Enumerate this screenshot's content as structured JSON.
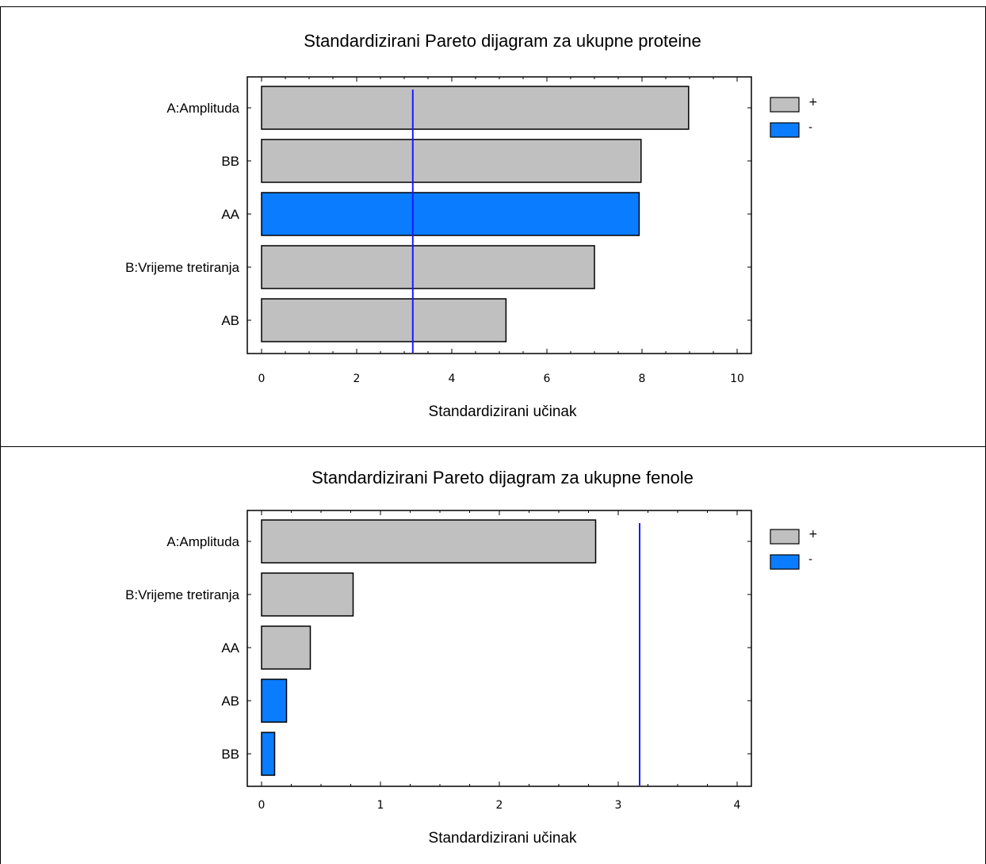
{
  "chart_data": [
    {
      "type": "bar",
      "orientation": "horizontal",
      "title": "Standardizirani Pareto dijagram za ukupne proteine",
      "xlabel": "Standardizirani učinak",
      "xlim": [
        0,
        10
      ],
      "xticks": [
        "0",
        "2",
        "4",
        "6",
        "8",
        "10"
      ],
      "categories": [
        "A:Amplituda",
        "BB",
        "AA",
        "B:Vrijeme tretiranja",
        "AB"
      ],
      "values": [
        8.98,
        7.98,
        7.94,
        7.0,
        5.14
      ],
      "signs": [
        "+",
        "+",
        "-",
        "+",
        "+"
      ],
      "reference_line": 3.18,
      "legend": [
        {
          "label": "+",
          "color": "#c0c0c0"
        },
        {
          "label": "-",
          "color": "#0a7cff"
        }
      ],
      "legend_position": "right"
    },
    {
      "type": "bar",
      "orientation": "horizontal",
      "title": "Standardizirani Pareto dijagram za ukupne fenole",
      "xlabel": "Standardizirani učinak",
      "xlim": [
        0,
        4
      ],
      "xticks": [
        "0",
        "1",
        "2",
        "3",
        "4"
      ],
      "categories": [
        "A:Amplituda",
        "B:Vrijeme tretiranja",
        "AA",
        "AB",
        "BB"
      ],
      "values": [
        2.81,
        0.77,
        0.41,
        0.21,
        0.11
      ],
      "signs": [
        "+",
        "+",
        "+",
        "-",
        "-"
      ],
      "reference_line": 3.18,
      "legend": [
        {
          "label": "+",
          "color": "#c0c0c0"
        },
        {
          "label": "-",
          "color": "#0a7cff"
        }
      ],
      "legend_position": "right"
    }
  ],
  "colors": {
    "positive": "#c0c0c0",
    "negative": "#0a7cff",
    "reference_line": "#1a1aff"
  }
}
